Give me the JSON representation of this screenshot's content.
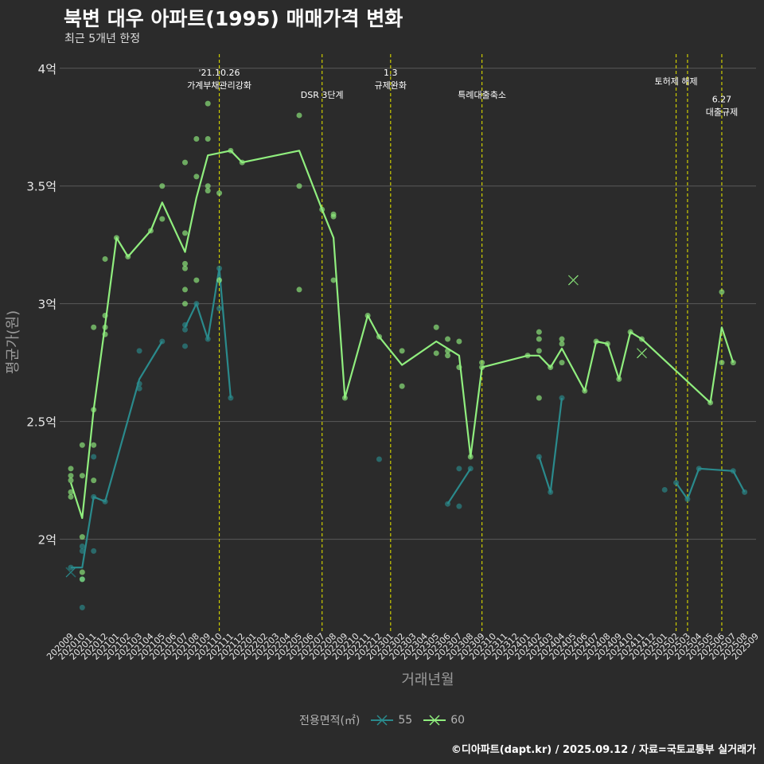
{
  "title": "북변 대우 아파트(1995) 매매가격 변화",
  "subtitle": "최근 5개년 한정",
  "caption": "©디아파트(dapt.kr) / 2025.09.12 / 자료=국토교통부 실거래가",
  "legend": {
    "title": "전용면적(㎡)"
  },
  "colors": {
    "background": "#2b2b2b",
    "grid": "#5a5a5a",
    "vline": "#cccc00",
    "s55": "#2a8a8c",
    "s60": "#90ee7e",
    "text": "#e6e6e6"
  },
  "chart_data": {
    "type": "line",
    "title": "북변 대우 아파트(1995) 매매가격 변화",
    "subtitle": "최근 5개년 한정",
    "xlabel": "거래년월",
    "ylabel": "평균가(원)",
    "ylim": [
      1.61,
      4.06
    ],
    "yticks": [
      2,
      2.5,
      3,
      3.5,
      4
    ],
    "ytick_labels": [
      "2억",
      "2.5억",
      "3억",
      "3.5억",
      "4억"
    ],
    "categories": [
      "202009",
      "202010",
      "202011",
      "202012",
      "202101",
      "202102",
      "202103",
      "202104",
      "202105",
      "202106",
      "202107",
      "202108",
      "202109",
      "202110",
      "202111",
      "202112",
      "202201",
      "202202",
      "202203",
      "202204",
      "202205",
      "202206",
      "202207",
      "202208",
      "202209",
      "202210",
      "202211",
      "202212",
      "202301",
      "202302",
      "202303",
      "202304",
      "202305",
      "202306",
      "202307",
      "202308",
      "202309",
      "202310",
      "202311",
      "202312",
      "202401",
      "202402",
      "202403",
      "202404",
      "202405",
      "202406",
      "202407",
      "202408",
      "202409",
      "202410",
      "202411",
      "202412",
      "202501",
      "202502",
      "202503",
      "202504",
      "202505",
      "202506",
      "202507",
      "202508",
      "202509"
    ],
    "series": [
      {
        "name": "55",
        "color": "#2a8a8c",
        "line": [
          [
            0,
            1.88
          ],
          [
            1,
            1.88
          ],
          [
            2,
            2.18
          ],
          [
            3,
            2.16
          ],
          [
            6,
            2.68
          ],
          [
            8,
            2.84
          ],
          null,
          [
            10,
            2.9
          ],
          [
            11,
            3.0
          ],
          [
            12,
            2.85
          ],
          [
            13,
            3.15
          ],
          [
            14,
            2.6
          ],
          null,
          [
            33,
            2.15
          ],
          [
            35,
            2.3
          ],
          null,
          [
            41,
            2.35
          ],
          [
            42,
            2.2
          ],
          [
            43,
            2.6
          ],
          null,
          [
            53,
            2.24
          ],
          [
            54,
            2.17
          ],
          [
            55,
            2.3
          ],
          [
            58,
            2.29
          ],
          [
            59,
            2.2
          ]
        ],
        "points": [
          [
            0,
            1.88
          ],
          [
            1,
            1.71
          ],
          [
            1,
            1.83
          ],
          [
            1,
            1.95
          ],
          [
            1,
            1.97
          ],
          [
            2,
            1.95
          ],
          [
            2,
            2.18
          ],
          [
            2,
            2.35
          ],
          [
            3,
            2.16
          ],
          [
            6,
            2.64
          ],
          [
            6,
            2.66
          ],
          [
            6,
            2.8
          ],
          [
            8,
            2.84
          ],
          [
            10,
            2.82
          ],
          [
            10,
            2.89
          ],
          [
            10,
            2.91
          ],
          [
            11,
            3.0
          ],
          [
            12,
            2.85
          ],
          [
            13,
            2.98
          ],
          [
            13,
            3.15
          ],
          [
            14,
            2.6
          ],
          [
            27,
            2.34
          ],
          [
            33,
            2.15
          ],
          [
            34,
            2.14
          ],
          [
            34,
            2.3
          ],
          [
            35,
            2.3
          ],
          [
            41,
            2.35
          ],
          [
            42,
            2.2
          ],
          [
            43,
            2.6
          ],
          [
            52,
            2.21
          ],
          [
            53,
            2.24
          ],
          [
            54,
            2.17
          ],
          [
            55,
            2.3
          ],
          [
            58,
            2.29
          ],
          [
            59,
            2.2
          ]
        ]
      },
      {
        "name": "60",
        "color": "#90ee7e",
        "line": [
          [
            0,
            2.24
          ],
          [
            1,
            2.09
          ],
          [
            2,
            2.55
          ],
          [
            3,
            2.91
          ],
          [
            4,
            3.28
          ],
          [
            5,
            3.2
          ],
          [
            7,
            3.31
          ],
          [
            8,
            3.43
          ],
          [
            10,
            3.22
          ],
          [
            11,
            3.45
          ],
          [
            12,
            3.63
          ],
          [
            14,
            3.65
          ],
          [
            15,
            3.6
          ],
          [
            20,
            3.65
          ],
          [
            22,
            3.4
          ],
          [
            23,
            3.28
          ],
          [
            24,
            2.6
          ],
          [
            26,
            2.95
          ],
          [
            27,
            2.86
          ],
          [
            29,
            2.74
          ],
          [
            32,
            2.84
          ],
          [
            34,
            2.78
          ],
          [
            35,
            2.35
          ],
          [
            36,
            2.73
          ],
          [
            40,
            2.78
          ],
          [
            41,
            2.78
          ],
          [
            42,
            2.73
          ],
          [
            43,
            2.81
          ],
          [
            45,
            2.63
          ],
          [
            46,
            2.84
          ],
          [
            47,
            2.83
          ],
          [
            48,
            2.68
          ],
          [
            49,
            2.88
          ],
          [
            50,
            2.85
          ],
          [
            56,
            2.58
          ],
          [
            57,
            2.9
          ],
          [
            58,
            2.75
          ]
        ],
        "points": [
          [
            0,
            2.18
          ],
          [
            0,
            2.2
          ],
          [
            0,
            2.25
          ],
          [
            0,
            2.27
          ],
          [
            0,
            2.3
          ],
          [
            1,
            1.83
          ],
          [
            1,
            1.86
          ],
          [
            1,
            2.01
          ],
          [
            1,
            2.27
          ],
          [
            1,
            2.4
          ],
          [
            2,
            2.4
          ],
          [
            2,
            2.25
          ],
          [
            2,
            2.55
          ],
          [
            2,
            2.9
          ],
          [
            3,
            2.87
          ],
          [
            3,
            2.9
          ],
          [
            3,
            2.95
          ],
          [
            3,
            3.19
          ],
          [
            4,
            3.28
          ],
          [
            5,
            3.2
          ],
          [
            7,
            3.31
          ],
          [
            8,
            3.36
          ],
          [
            8,
            3.5
          ],
          [
            10,
            3.0
          ],
          [
            10,
            3.06
          ],
          [
            10,
            3.15
          ],
          [
            10,
            3.17
          ],
          [
            10,
            3.3
          ],
          [
            10,
            3.6
          ],
          [
            11,
            3.1
          ],
          [
            11,
            3.54
          ],
          [
            11,
            3.7
          ],
          [
            12,
            3.48
          ],
          [
            12,
            3.5
          ],
          [
            12,
            3.7
          ],
          [
            12,
            3.85
          ],
          [
            13,
            3.1
          ],
          [
            13,
            3.47
          ],
          [
            14,
            3.65
          ],
          [
            15,
            3.6
          ],
          [
            20,
            3.5
          ],
          [
            20,
            3.8
          ],
          [
            20,
            3.06
          ],
          [
            22,
            3.4
          ],
          [
            23,
            3.37
          ],
          [
            23,
            3.38
          ],
          [
            23,
            3.1
          ],
          [
            24,
            2.6
          ],
          [
            26,
            2.95
          ],
          [
            27,
            2.86
          ],
          [
            29,
            2.65
          ],
          [
            29,
            2.8
          ],
          [
            32,
            2.79
          ],
          [
            32,
            2.9
          ],
          [
            33,
            2.78
          ],
          [
            33,
            2.8
          ],
          [
            33,
            2.85
          ],
          [
            34,
            2.73
          ],
          [
            34,
            2.84
          ],
          [
            35,
            2.35
          ],
          [
            36,
            2.73
          ],
          [
            36,
            2.75
          ],
          [
            40,
            2.78
          ],
          [
            41,
            2.6
          ],
          [
            41,
            2.8
          ],
          [
            41,
            2.85
          ],
          [
            41,
            2.88
          ],
          [
            42,
            2.73
          ],
          [
            43,
            2.75
          ],
          [
            43,
            2.83
          ],
          [
            43,
            2.85
          ],
          [
            45,
            2.63
          ],
          [
            46,
            2.84
          ],
          [
            47,
            2.83
          ],
          [
            48,
            2.68
          ],
          [
            49,
            2.88
          ],
          [
            50,
            2.85
          ],
          [
            56,
            2.58
          ],
          [
            57,
            2.75
          ],
          [
            57,
            3.05
          ],
          [
            58,
            2.75
          ]
        ]
      }
    ],
    "single_trades": [
      {
        "series": "55",
        "x": 0,
        "y": 1.86
      },
      {
        "series": "60",
        "x": 44,
        "y": 3.1
      },
      {
        "series": "60",
        "x": 50,
        "y": 2.79
      }
    ],
    "annotations": [
      {
        "x": 13,
        "lines": [
          "'21.10.26",
          "가계부채관리강화"
        ],
        "level": 0
      },
      {
        "x": 22,
        "lines": [
          "DSR 3단계"
        ],
        "level": 1
      },
      {
        "x": 28,
        "lines": [
          "1.3",
          "규제완화"
        ],
        "level": 0
      },
      {
        "x": 36,
        "lines": [
          "특례대출축소"
        ],
        "level": 1
      },
      {
        "x": 53,
        "lines": [
          "토허제 해제"
        ],
        "level": 0.4
      },
      {
        "x": 54,
        "lines": [],
        "level": 0
      },
      {
        "x": 57,
        "lines": [
          "6.27",
          "대출규제"
        ],
        "level": 1.2
      }
    ]
  }
}
